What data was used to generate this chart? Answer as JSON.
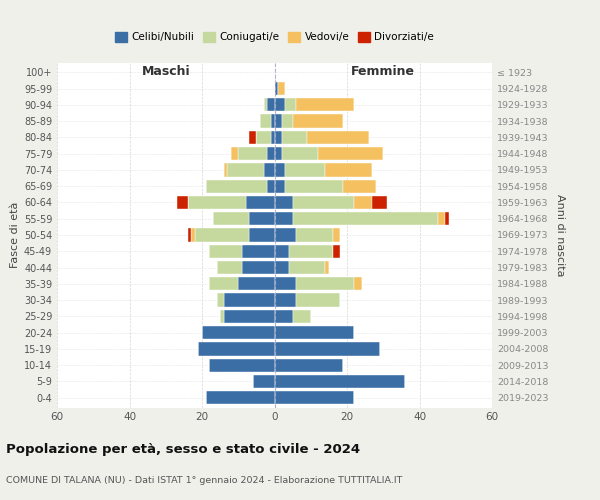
{
  "age_groups": [
    "0-4",
    "5-9",
    "10-14",
    "15-19",
    "20-24",
    "25-29",
    "30-34",
    "35-39",
    "40-44",
    "45-49",
    "50-54",
    "55-59",
    "60-64",
    "65-69",
    "70-74",
    "75-79",
    "80-84",
    "85-89",
    "90-94",
    "95-99",
    "100+"
  ],
  "birth_years": [
    "2019-2023",
    "2014-2018",
    "2009-2013",
    "2004-2008",
    "1999-2003",
    "1994-1998",
    "1989-1993",
    "1984-1988",
    "1979-1983",
    "1974-1978",
    "1969-1973",
    "1964-1968",
    "1959-1963",
    "1954-1958",
    "1949-1953",
    "1944-1948",
    "1939-1943",
    "1934-1938",
    "1929-1933",
    "1924-1928",
    "≤ 1923"
  ],
  "maschi": {
    "celibi": [
      19,
      6,
      18,
      21,
      20,
      14,
      14,
      10,
      9,
      9,
      7,
      7,
      8,
      2,
      3,
      2,
      1,
      1,
      2,
      0,
      0
    ],
    "coniugati": [
      0,
      0,
      0,
      0,
      0,
      1,
      2,
      8,
      7,
      9,
      15,
      10,
      16,
      17,
      10,
      8,
      4,
      3,
      1,
      0,
      0
    ],
    "vedovi": [
      0,
      0,
      0,
      0,
      0,
      0,
      0,
      0,
      0,
      0,
      1,
      0,
      0,
      0,
      1,
      2,
      0,
      0,
      0,
      0,
      0
    ],
    "divorziati": [
      0,
      0,
      0,
      0,
      0,
      0,
      0,
      0,
      0,
      0,
      1,
      0,
      3,
      0,
      0,
      0,
      2,
      0,
      0,
      0,
      0
    ]
  },
  "femmine": {
    "nubili": [
      22,
      36,
      19,
      29,
      22,
      5,
      6,
      6,
      4,
      4,
      6,
      5,
      5,
      3,
      3,
      2,
      2,
      2,
      3,
      1,
      0
    ],
    "coniugate": [
      0,
      0,
      0,
      0,
      0,
      5,
      12,
      16,
      10,
      12,
      10,
      40,
      17,
      16,
      11,
      10,
      7,
      3,
      3,
      0,
      0
    ],
    "vedove": [
      0,
      0,
      0,
      0,
      0,
      0,
      0,
      2,
      1,
      0,
      2,
      2,
      5,
      9,
      13,
      18,
      17,
      14,
      16,
      2,
      0
    ],
    "divorziate": [
      0,
      0,
      0,
      0,
      0,
      0,
      0,
      0,
      0,
      2,
      0,
      1,
      4,
      0,
      0,
      0,
      0,
      0,
      0,
      0,
      0
    ]
  },
  "colors": {
    "celibi": "#3a6ea5",
    "coniugati": "#c5d89d",
    "vedovi": "#f5c060",
    "divorziati": "#cc2200"
  },
  "legend_labels": [
    "Celibi/Nubili",
    "Coniugati/e",
    "Vedovi/e",
    "Divorziati/e"
  ],
  "xlim": 60,
  "title_main": "Popolazione per età, sesso e stato civile - 2024",
  "title_sub": "COMUNE DI TALANA (NU) - Dati ISTAT 1° gennaio 2024 - Elaborazione TUTTITALIA.IT",
  "ylabel_left": "Fasce di età",
  "ylabel_right": "Anni di nascita",
  "xlabel_left": "Maschi",
  "xlabel_right": "Femmine",
  "bg_color": "#f0f0eb",
  "bar_bg_color": "#ffffff"
}
